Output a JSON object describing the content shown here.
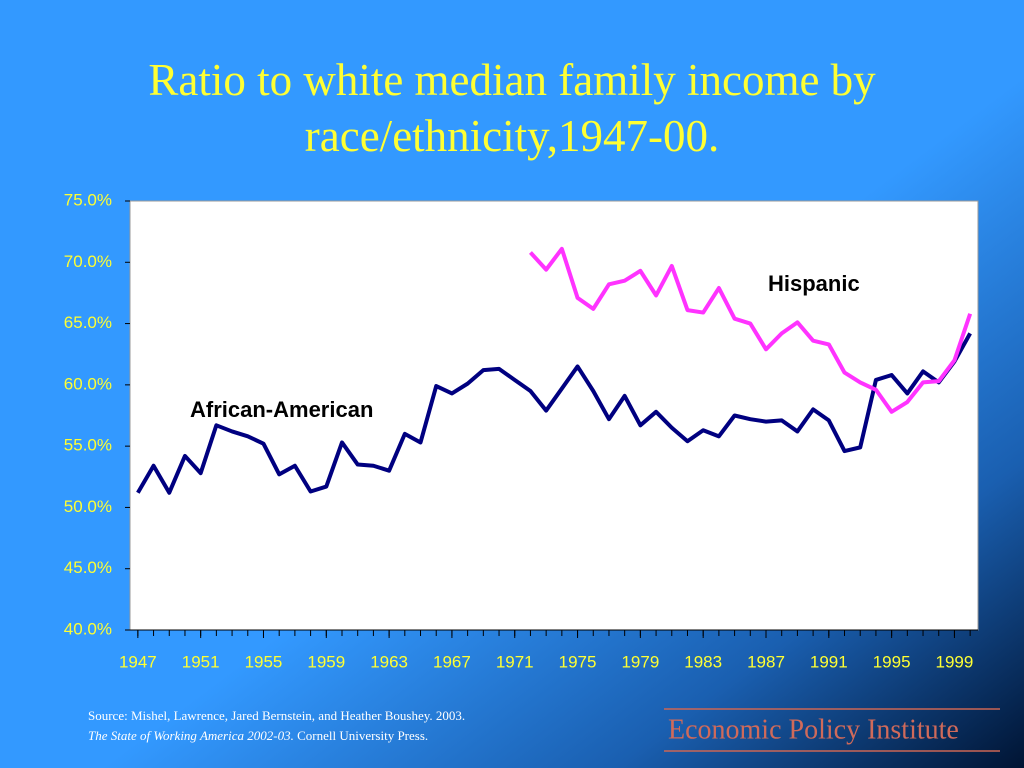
{
  "chart_data": {
    "type": "line",
    "title": "Ratio to white median family income by race/ethnicity,1947-00.",
    "x": [
      1947,
      1948,
      1949,
      1950,
      1951,
      1952,
      1953,
      1954,
      1955,
      1956,
      1957,
      1958,
      1959,
      1960,
      1961,
      1962,
      1963,
      1964,
      1965,
      1966,
      1967,
      1968,
      1969,
      1970,
      1971,
      1972,
      1973,
      1974,
      1975,
      1976,
      1977,
      1978,
      1979,
      1980,
      1981,
      1982,
      1983,
      1984,
      1985,
      1986,
      1987,
      1988,
      1989,
      1990,
      1991,
      1992,
      1993,
      1994,
      1995,
      1996,
      1997,
      1998,
      1999,
      2000
    ],
    "xlim": [
      1946.5,
      2000.5
    ],
    "xticks": [
      1947,
      1951,
      1955,
      1959,
      1963,
      1967,
      1971,
      1975,
      1979,
      1983,
      1987,
      1991,
      1995,
      1999
    ],
    "ylim": [
      40,
      75
    ],
    "yticks": [
      {
        "value": 40,
        "label": "40.0%"
      },
      {
        "value": 45,
        "label": "45.0%"
      },
      {
        "value": 50,
        "label": "50.0%"
      },
      {
        "value": 55,
        "label": "55.0%"
      },
      {
        "value": 60,
        "label": "60.0%"
      },
      {
        "value": 65,
        "label": "65.0%"
      },
      {
        "value": 70,
        "label": "70.0%"
      },
      {
        "value": 75,
        "label": "75.0%"
      }
    ],
    "series": [
      {
        "name": "African-American",
        "color": "#000080",
        "values": [
          51.2,
          53.4,
          51.2,
          54.2,
          52.8,
          56.7,
          56.2,
          55.8,
          55.2,
          52.7,
          53.4,
          51.3,
          51.7,
          55.3,
          53.5,
          53.4,
          53.0,
          56.0,
          55.3,
          59.9,
          59.3,
          60.1,
          61.2,
          61.3,
          60.4,
          59.5,
          57.9,
          59.7,
          61.5,
          59.5,
          57.2,
          59.1,
          56.7,
          57.8,
          56.5,
          55.4,
          56.3,
          55.8,
          57.5,
          57.2,
          57.0,
          57.1,
          56.2,
          58.0,
          57.1,
          54.6,
          54.9,
          60.4,
          60.8,
          59.3,
          61.1,
          60.2,
          61.9,
          64.2
        ]
      },
      {
        "name": "Hispanic",
        "color": "#ff33ff",
        "values": [
          null,
          null,
          null,
          null,
          null,
          null,
          null,
          null,
          null,
          null,
          null,
          null,
          null,
          null,
          null,
          null,
          null,
          null,
          null,
          null,
          null,
          null,
          null,
          null,
          null,
          70.8,
          69.4,
          71.1,
          67.1,
          66.2,
          68.2,
          68.5,
          69.3,
          67.3,
          69.7,
          66.1,
          65.9,
          67.9,
          65.4,
          65.0,
          62.9,
          64.2,
          65.1,
          63.6,
          63.3,
          61.0,
          60.2,
          59.6,
          57.8,
          58.6,
          60.2,
          60.3,
          62.0,
          65.8
        ]
      }
    ],
    "source": {
      "line1": "Source:  Mishel, Lawrence, Jared Bernstein, and Heather Boushey. 2003.",
      "book": "The State of Working America 2002-03.",
      "publisher": " Cornell University Press."
    },
    "logo": "Economic Policy Institute"
  }
}
